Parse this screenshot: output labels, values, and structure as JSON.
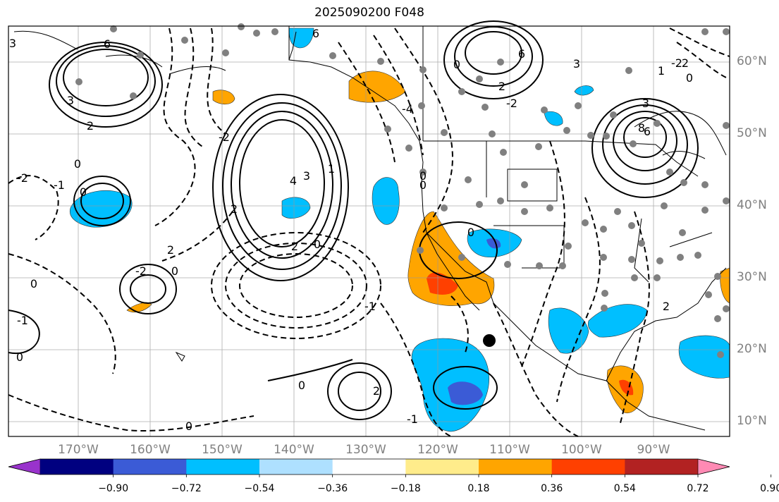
{
  "title": "2025090200 F048",
  "map": {
    "lat_labels": [
      "60°N",
      "50°N",
      "40°N",
      "30°N",
      "20°N",
      "10°N"
    ],
    "lon_labels": [
      "170°W",
      "160°W",
      "150°W",
      "140°W",
      "130°W",
      "120°W",
      "110°W",
      "100°W",
      "90°W"
    ],
    "contour_labels": [
      "3",
      "6",
      "3",
      "2",
      "0",
      "-2",
      "-1",
      "0",
      "0",
      "-1",
      "6",
      "4",
      "3",
      "2",
      "0",
      "2",
      "-2",
      "2",
      "-2",
      "0",
      "1",
      "-1",
      "6",
      "3",
      "2",
      "0",
      "-4",
      "-2",
      "6",
      "8",
      "3",
      "2",
      "1",
      "-2",
      "0",
      "0",
      "0",
      "0",
      "2",
      "0",
      "-1",
      "0",
      "2",
      "0"
    ]
  },
  "colorbar": {
    "ticks": [
      "−0.90",
      "−0.72",
      "−0.54",
      "−0.36",
      "−0.18",
      "0.18",
      "0.36",
      "0.54",
      "0.72",
      "0.90"
    ],
    "colors": [
      "#9933cc",
      "#000080",
      "#3b5bd6",
      "#00bfff",
      "#aee0ff",
      "#ffffff",
      "#ffec8b",
      "#ffa500",
      "#ff4000",
      "#b22222",
      "#ff8ab4"
    ]
  }
}
